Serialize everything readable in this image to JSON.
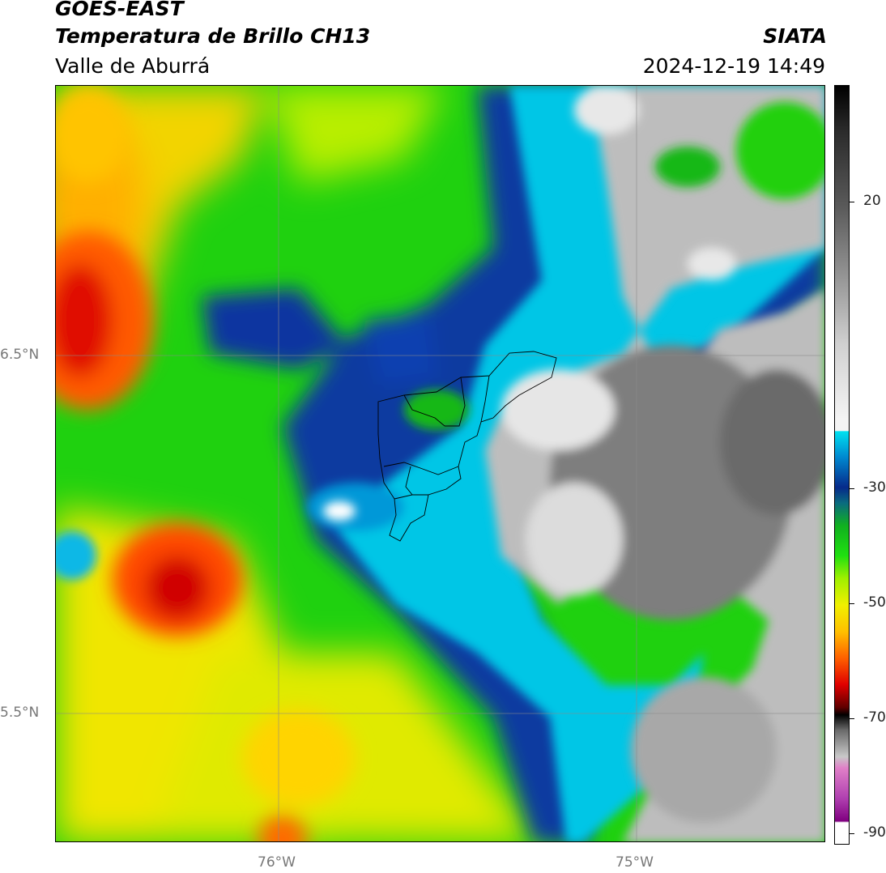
{
  "header": {
    "satellite": "GOES-EAST",
    "product": "Temperatura de Brillo CH13",
    "region": "Valle de Aburrá",
    "agency": "SIATA",
    "datetime": "2024-12-19 14:49"
  },
  "map": {
    "lat_ticks": [
      "6.5°N",
      "5.5°N"
    ],
    "lon_ticks": [
      "76°W",
      "75°W"
    ],
    "gridlines": true
  },
  "colorbar": {
    "labels": [
      "20",
      "-30",
      "-50",
      "-70",
      "-90"
    ],
    "unit_values": [
      20,
      -30,
      -50,
      -70,
      -90
    ]
  }
}
